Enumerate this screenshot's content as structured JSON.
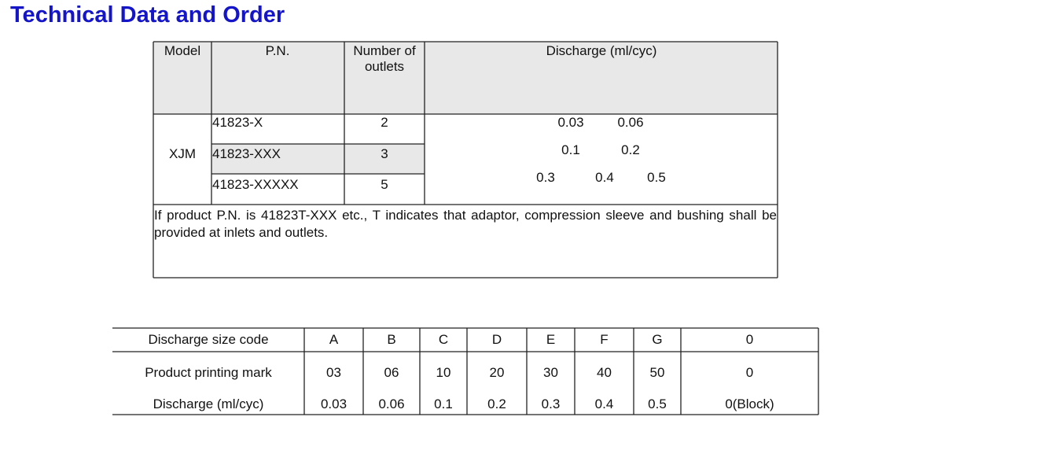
{
  "header": {
    "title": "Technical Data and Order"
  },
  "order_table": {
    "headers": [
      "Model",
      "P.N.",
      "Number of outlets",
      "Discharge (ml/cyc)"
    ],
    "model": "XJM",
    "rows": [
      [
        "41823-X",
        "2"
      ],
      [
        "41823-XXX",
        "3"
      ],
      [
        "41823-XXXXX",
        "5"
      ]
    ],
    "discharge": [
      [
        "0.03",
        "0.06"
      ],
      [
        "0.1",
        "0.2"
      ],
      [
        "0.3",
        "0.4",
        "0.5"
      ]
    ],
    "note": "If product P.N. is 41823T-XXX etc., T indicates that adaptor, compression sleeve and bushing shall be provided at inlets and outlets."
  },
  "code_table": {
    "rows": [
      [
        "Discharge size code",
        "A",
        "B",
        "C",
        "D",
        "E",
        "F",
        "G",
        "0"
      ],
      [
        "Product printing mark",
        "03",
        "06",
        "10",
        "20",
        "30",
        "40",
        "50",
        "0"
      ],
      [
        "Discharge (ml/cyc)",
        "0.03",
        "0.06",
        "0.1",
        "0.2",
        "0.3",
        "0.4",
        "0.5",
        "0(Block)"
      ]
    ]
  }
}
